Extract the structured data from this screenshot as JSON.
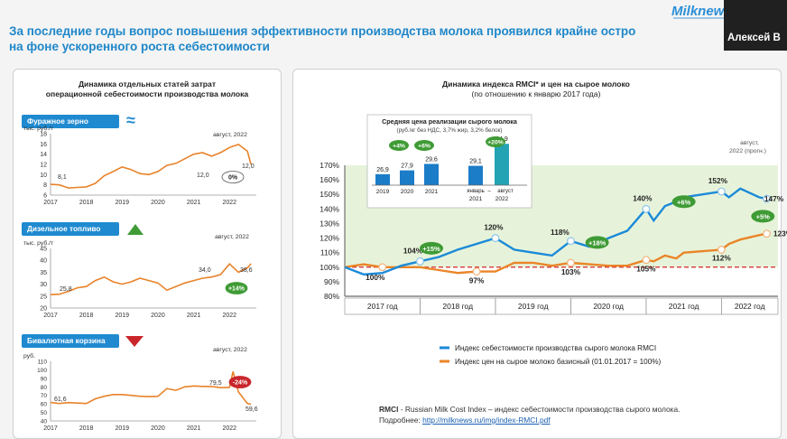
{
  "slide": {
    "title_line1": "За последние годы вопрос повышения эффективности производства молока проявился крайне остро",
    "title_line2": "на фоне ускоренного роста себестоимости",
    "logo": "Milknews",
    "presenter": "Алексей В"
  },
  "left_panel": {
    "title_line1": "Динамика отдельных статей затрат",
    "title_line2": "операционной себестоимости производства молока"
  },
  "colors": {
    "accent_blue": "#1f8ad0",
    "orange": "#e8832a",
    "green": "#3f9b35",
    "red": "#c9262c",
    "index_blue": "#1b8ad8",
    "index_orange": "#ea8528"
  },
  "icons": {
    "feed": "approx-sign-icon",
    "diesel": "triangle-up-icon",
    "bivalent": "triangle-down-icon"
  },
  "chart_data": [
    {
      "type": "line",
      "title": "Фуражное зерно",
      "ylabel": "тыс. руб./т",
      "ylim": [
        6,
        18
      ],
      "yticks": [
        6,
        8,
        10,
        12,
        14,
        16,
        18
      ],
      "xticks": [
        "2017",
        "2018",
        "2019",
        "2020",
        "2021",
        "2022"
      ],
      "x": [
        2017.0,
        2017.25,
        2017.5,
        2017.75,
        2018.0,
        2018.25,
        2018.5,
        2018.75,
        2019.0,
        2019.25,
        2019.5,
        2019.75,
        2020.0,
        2020.25,
        2020.5,
        2020.75,
        2021.0,
        2021.25,
        2021.5,
        2021.75,
        2022.0,
        2022.25,
        2022.5,
        2022.6
      ],
      "values": [
        8.1,
        8.0,
        7.4,
        7.5,
        7.6,
        8.3,
        9.8,
        10.6,
        11.5,
        11.0,
        10.2,
        10.0,
        10.6,
        11.8,
        12.2,
        13.1,
        14.0,
        14.3,
        13.6,
        14.3,
        15.3,
        15.9,
        14.6,
        12.0
      ],
      "annotations": {
        "start": "8,1",
        "ref": "12,0",
        "end": "12,0",
        "period": "август, 2022",
        "change": "0%"
      }
    },
    {
      "type": "line",
      "title": "Дизельное топливо",
      "ylabel": "тыс. руб./т",
      "ylim": [
        20,
        45
      ],
      "yticks": [
        20,
        25,
        30,
        35,
        40,
        45
      ],
      "xticks": [
        "2017",
        "2018",
        "2019",
        "2020",
        "2021",
        "2022"
      ],
      "x": [
        2017.0,
        2017.25,
        2017.5,
        2017.75,
        2018.0,
        2018.25,
        2018.5,
        2018.75,
        2019.0,
        2019.25,
        2019.5,
        2019.75,
        2020.0,
        2020.25,
        2020.5,
        2020.75,
        2021.0,
        2021.25,
        2021.5,
        2021.75,
        2022.0,
        2022.25,
        2022.5,
        2022.6
      ],
      "values": [
        25.6,
        25.8,
        27.0,
        28.5,
        29.0,
        31.5,
        33.0,
        31.0,
        30.0,
        31.0,
        32.5,
        31.5,
        30.5,
        27.5,
        29.0,
        30.5,
        31.5,
        32.5,
        33.0,
        34.0,
        38.5,
        35.0,
        36.8,
        38.6
      ],
      "annotations": {
        "start": "25,8",
        "ref": "34,0",
        "end": "38,6",
        "period": "август, 2022",
        "change": "+14%"
      }
    },
    {
      "type": "line",
      "title": "Бивалютная корзина",
      "ylabel": "руб.",
      "ylim": [
        40,
        110
      ],
      "yticks": [
        40,
        50,
        60,
        70,
        80,
        90,
        100,
        110
      ],
      "xticks": [
        "2017",
        "2018",
        "2019",
        "2020",
        "2021",
        "2022"
      ],
      "x": [
        2017.0,
        2017.25,
        2017.5,
        2017.75,
        2018.0,
        2018.25,
        2018.5,
        2018.75,
        2019.0,
        2019.25,
        2019.5,
        2019.75,
        2020.0,
        2020.25,
        2020.5,
        2020.75,
        2021.0,
        2021.25,
        2021.5,
        2021.75,
        2022.0,
        2022.1,
        2022.25,
        2022.5,
        2022.6
      ],
      "values": [
        61.6,
        60.5,
        61.5,
        61.0,
        60.5,
        66.0,
        69.0,
        71.0,
        71.0,
        70.0,
        69.0,
        68.5,
        69.0,
        78.0,
        76.0,
        80.0,
        81.0,
        80.5,
        80.5,
        79.0,
        79.5,
        98.0,
        74.0,
        60.5,
        59.6
      ],
      "annotations": {
        "start": "61,6",
        "ref": "79,5",
        "end": "59,6",
        "period": "август, 2022",
        "change": "-24%"
      }
    },
    {
      "type": "line",
      "title": "Динамика индекса RMCI* и цен на сырое молоко",
      "subtitle": "(по отношению к январю 2017 года)",
      "ylim": [
        80,
        170
      ],
      "yticks": [
        "80%",
        "90%",
        "100%",
        "110%",
        "120%",
        "130%",
        "140%",
        "150%",
        "160%",
        "170%"
      ],
      "xticks": [
        "2017 год",
        "2018 год",
        "2019 год",
        "2020 год",
        "2021 год",
        "2022 год"
      ],
      "x": [
        2017.0,
        2017.25,
        2017.5,
        2017.75,
        2018.0,
        2018.25,
        2018.5,
        2018.75,
        2019.0,
        2019.25,
        2019.5,
        2019.75,
        2020.0,
        2020.25,
        2020.5,
        2020.75,
        2021.0,
        2021.1,
        2021.25,
        2021.4,
        2021.5,
        2021.75,
        2022.0,
        2022.1,
        2022.25,
        2022.5,
        2022.6
      ],
      "series": [
        {
          "name": "Индекс себестоимости производства сырого молока RMCI",
          "values": [
            100,
            95,
            96,
            101,
            104,
            107,
            112,
            116,
            120,
            112,
            110,
            108,
            118,
            114,
            120,
            125,
            140,
            132,
            142,
            145,
            148,
            150,
            152,
            148,
            154,
            148,
            147
          ]
        },
        {
          "name": "Индекс цен на сырое молоко базисный (01.01.2017 = 100%)",
          "values": [
            100,
            102,
            100,
            100,
            100,
            98,
            96,
            97,
            97,
            103,
            103,
            101,
            103,
            102,
            101,
            101,
            105,
            104,
            108,
            106,
            110,
            111,
            112,
            116,
            119,
            122,
            123
          ]
        }
      ],
      "labels": {
        "rmci": [
          "104%",
          "120%",
          "118%",
          "140%",
          "152%",
          "147%"
        ],
        "price": [
          "100%",
          "97%",
          "103%",
          "105%",
          "112%",
          "123%"
        ]
      },
      "growth_labels": [
        "+15%",
        "+18%",
        "+6%",
        "+5%"
      ],
      "baseline": "100%",
      "end_label": "август, 2022 (прогн.)",
      "legend_position": "bottom"
    },
    {
      "type": "bar",
      "title": "Средняя цена реализации сырого молока",
      "subtitle": "(руб./кг без НДС, 3,7% жир, 3,2% белок)",
      "categories": [
        "2019",
        "2020",
        "2021",
        "январь – август 2021",
        "январь – август 2022"
      ],
      "values": [
        26.9,
        27.9,
        29.6,
        29.1,
        34.9
      ],
      "value_labels": [
        "26,9",
        "27,9",
        "29,6",
        "29,1",
        "34,9"
      ],
      "category_labels": [
        "2019",
        "2020",
        "2021",
        "январь",
        "август",
        "2021",
        "2022"
      ],
      "growth_labels": [
        "+4%",
        "+6%",
        "+20%"
      ]
    }
  ],
  "source": {
    "line1_bold": "RMCI",
    "line1_rest": " - Russian Milk Cost Index – индекс себестоимости производства сырого молока.",
    "line2_label": "Подробнее: ",
    "line2_link": "http://milknews.ru/img/index-RMCI.pdf"
  }
}
